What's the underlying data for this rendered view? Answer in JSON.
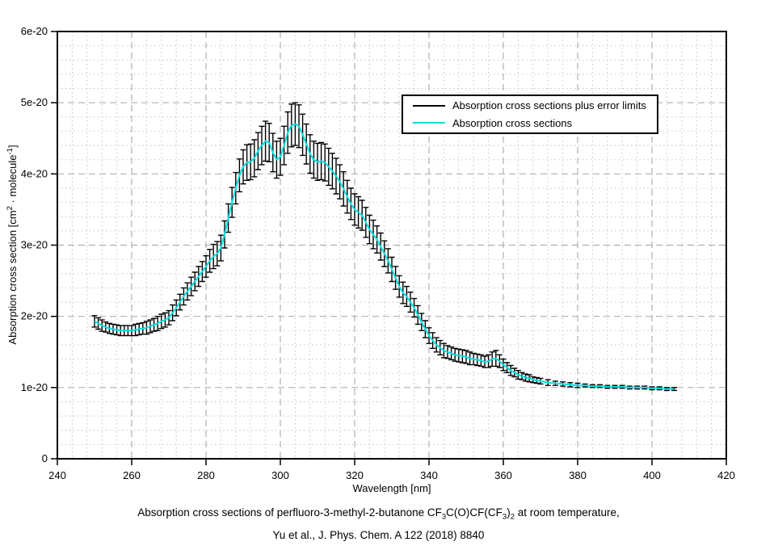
{
  "figure": {
    "x_axis": {
      "label": "Wavelength [nm]",
      "ticks": [
        240,
        260,
        280,
        300,
        320,
        340,
        360,
        380,
        400,
        420
      ],
      "minor_step_nm": 4
    },
    "y_axis": {
      "label_parts": {
        "pre": "Absorption cross section [cm",
        "sup1": "2",
        "mid": " · molecule",
        "sup2": "-1",
        "post": "]"
      },
      "tick_labels": [
        "0",
        "1e-20",
        "2e-20",
        "3e-20",
        "4e-20",
        "5e-20",
        "6e-20"
      ],
      "tick_values_1e20": [
        0,
        1,
        2,
        3,
        4,
        5,
        6
      ],
      "minor_step_1e20": 0.2
    },
    "legend": {
      "entries": [
        {
          "label": "Absorption cross sections plus error limits",
          "color": "#000000"
        },
        {
          "label": "Absorption cross sections",
          "color": "#00e0e0"
        }
      ]
    },
    "caption": {
      "line1_parts": {
        "pre": "Absorption cross sections of perfluoro-3-methyl-2-butanone CF",
        "sub1": "3",
        "mid1": "C(O)CF(CF",
        "sub2": "3",
        "mid2": ")",
        "sub3": "2",
        "post": " at room temperature,"
      },
      "line2": "Yu et al., J. Phys. Chem. A 122 (2018) 8840"
    }
  },
  "chart_data": {
    "type": "line",
    "title": "Absorption cross sections of perfluoro-3-methyl-2-butanone CF3C(O)CF(CF3)2 at room temperature, Yu et al., J. Phys. Chem. A 122 (2018) 8840",
    "xlabel": "Wavelength [nm]",
    "ylabel": "Absorption cross section [cm2 · molecule-1]",
    "xlim": [
      240,
      420
    ],
    "ylim_1e20": [
      0,
      6
    ],
    "grid": "major dashed + minor dotted",
    "legend_position": "upper right inside plot",
    "value_unit": "1e-20 cm2 molecule-1",
    "series": [
      {
        "name": "Absorption cross sections plus error limits",
        "style": "error-bars",
        "color": "#000000"
      },
      {
        "name": "Absorption cross sections",
        "style": "line",
        "color": "#00e0e0"
      }
    ],
    "wavelength_nm": [
      250,
      251,
      252,
      253,
      254,
      255,
      256,
      257,
      258,
      259,
      260,
      261,
      262,
      263,
      264,
      265,
      266,
      267,
      268,
      269,
      270,
      271,
      272,
      273,
      274,
      275,
      276,
      277,
      278,
      279,
      280,
      281,
      282,
      283,
      284,
      285,
      286,
      287,
      288,
      289,
      290,
      291,
      292,
      293,
      294,
      295,
      296,
      297,
      298,
      299,
      300,
      301,
      302,
      303,
      304,
      305,
      306,
      307,
      308,
      309,
      310,
      311,
      312,
      313,
      314,
      315,
      316,
      317,
      318,
      319,
      320,
      321,
      322,
      323,
      324,
      325,
      326,
      327,
      328,
      329,
      330,
      331,
      332,
      333,
      334,
      335,
      336,
      337,
      338,
      339,
      340,
      341,
      342,
      343,
      344,
      345,
      346,
      347,
      348,
      349,
      350,
      351,
      352,
      353,
      354,
      355,
      356,
      357,
      358,
      359,
      360,
      361,
      362,
      363,
      364,
      365,
      366,
      367,
      368,
      369,
      370,
      372,
      374,
      376,
      378,
      380,
      382,
      384,
      386,
      388,
      390,
      392,
      394,
      396,
      398,
      400,
      402,
      404,
      406
    ],
    "sigma_1e20": [
      1.93,
      1.9,
      1.87,
      1.85,
      1.83,
      1.82,
      1.81,
      1.8,
      1.8,
      1.8,
      1.8,
      1.81,
      1.82,
      1.83,
      1.84,
      1.86,
      1.88,
      1.9,
      1.93,
      1.95,
      1.98,
      2.05,
      2.12,
      2.2,
      2.28,
      2.35,
      2.42,
      2.49,
      2.56,
      2.63,
      2.7,
      2.78,
      2.84,
      2.88,
      2.96,
      3.15,
      3.38,
      3.6,
      3.8,
      3.98,
      4.1,
      4.16,
      4.17,
      4.22,
      4.32,
      4.4,
      4.46,
      4.44,
      4.3,
      4.2,
      4.24,
      4.4,
      4.58,
      4.68,
      4.7,
      4.67,
      4.55,
      4.42,
      4.28,
      4.2,
      4.17,
      4.18,
      4.16,
      4.1,
      4.04,
      3.97,
      3.89,
      3.79,
      3.68,
      3.58,
      3.5,
      3.46,
      3.42,
      3.32,
      3.22,
      3.15,
      3.08,
      2.98,
      2.88,
      2.78,
      2.66,
      2.54,
      2.42,
      2.33,
      2.28,
      2.2,
      2.12,
      2.02,
      1.92,
      1.82,
      1.73,
      1.66,
      1.6,
      1.56,
      1.52,
      1.5,
      1.48,
      1.46,
      1.45,
      1.44,
      1.43,
      1.41,
      1.4,
      1.39,
      1.38,
      1.36,
      1.37,
      1.4,
      1.41,
      1.37,
      1.32,
      1.28,
      1.24,
      1.21,
      1.18,
      1.16,
      1.14,
      1.13,
      1.11,
      1.1,
      1.09,
      1.07,
      1.06,
      1.05,
      1.04,
      1.03,
      1.03,
      1.02,
      1.02,
      1.01,
      1.01,
      1.01,
      1.0,
      1.0,
      1.0,
      0.99,
      0.99,
      0.98,
      0.98
    ],
    "error_1e20": [
      0.08,
      0.08,
      0.08,
      0.07,
      0.07,
      0.07,
      0.07,
      0.07,
      0.07,
      0.07,
      0.07,
      0.08,
      0.08,
      0.08,
      0.09,
      0.09,
      0.09,
      0.1,
      0.1,
      0.1,
      0.1,
      0.11,
      0.11,
      0.11,
      0.12,
      0.12,
      0.13,
      0.13,
      0.14,
      0.14,
      0.15,
      0.16,
      0.17,
      0.17,
      0.18,
      0.19,
      0.2,
      0.21,
      0.22,
      0.23,
      0.24,
      0.25,
      0.25,
      0.26,
      0.26,
      0.27,
      0.28,
      0.27,
      0.27,
      0.26,
      0.26,
      0.27,
      0.29,
      0.3,
      0.3,
      0.3,
      0.29,
      0.28,
      0.27,
      0.26,
      0.26,
      0.26,
      0.26,
      0.26,
      0.25,
      0.25,
      0.24,
      0.24,
      0.23,
      0.22,
      0.22,
      0.22,
      0.21,
      0.21,
      0.2,
      0.2,
      0.19,
      0.19,
      0.18,
      0.17,
      0.17,
      0.16,
      0.15,
      0.15,
      0.14,
      0.14,
      0.13,
      0.13,
      0.12,
      0.12,
      0.11,
      0.11,
      0.1,
      0.1,
      0.1,
      0.09,
      0.09,
      0.09,
      0.09,
      0.09,
      0.09,
      0.09,
      0.08,
      0.08,
      0.08,
      0.08,
      0.09,
      0.1,
      0.11,
      0.09,
      0.08,
      0.07,
      0.07,
      0.06,
      0.06,
      0.05,
      0.05,
      0.05,
      0.04,
      0.04,
      0.04,
      0.04,
      0.03,
      0.03,
      0.03,
      0.03,
      0.02,
      0.02,
      0.02,
      0.02,
      0.02,
      0.02,
      0.02,
      0.02,
      0.02,
      0.02,
      0.02,
      0.02,
      0.02
    ]
  }
}
